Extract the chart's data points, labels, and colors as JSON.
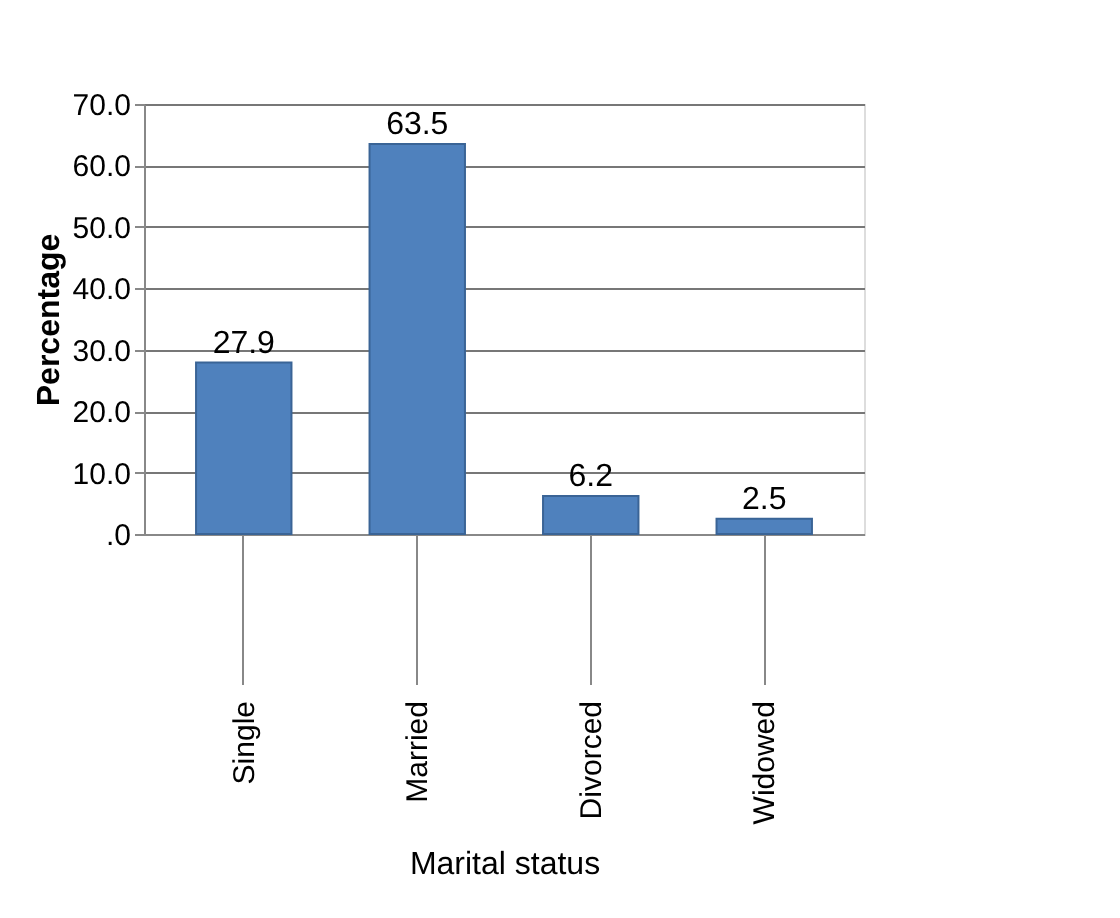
{
  "chart_data": {
    "type": "bar",
    "xlabel": "Marital status",
    "ylabel": "Percentage",
    "categories": [
      "Single",
      "Married",
      "Divorced",
      "Widowed"
    ],
    "values": [
      27.9,
      63.5,
      6.2,
      2.5
    ],
    "color": "#4f81bd",
    "ylim": [
      0,
      70
    ],
    "yticks": [
      {
        "value": 0,
        "label": ".0"
      },
      {
        "value": 10,
        "label": "10.0"
      },
      {
        "value": 20,
        "label": "20.0"
      },
      {
        "value": 30,
        "label": "30.0"
      },
      {
        "value": 40,
        "label": "40.0"
      },
      {
        "value": 50,
        "label": "50.0"
      },
      {
        "value": 60,
        "label": "60.0"
      },
      {
        "value": 70,
        "label": "70.0"
      }
    ],
    "grid": "y",
    "data_labels": true
  }
}
